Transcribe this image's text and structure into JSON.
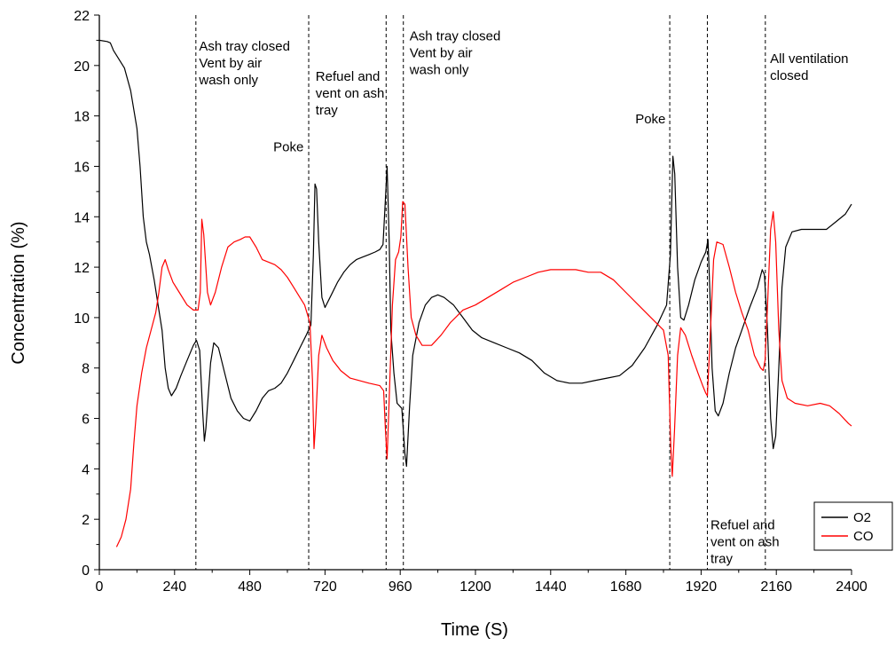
{
  "chart_data": {
    "type": "line",
    "title": "",
    "xlabel": "Time (S)",
    "ylabel": "Concentration (%)",
    "xlim": [
      0,
      2400
    ],
    "ylim": [
      0,
      22
    ],
    "xticks": [
      0,
      240,
      480,
      720,
      960,
      1200,
      1440,
      1680,
      1920,
      2160,
      2400
    ],
    "yticks": [
      0,
      2,
      4,
      6,
      8,
      10,
      12,
      14,
      16,
      18,
      20,
      22
    ],
    "grid": false,
    "legend_position": "bottom-right",
    "legend": [
      "O2",
      "CO"
    ],
    "vlines": [
      308,
      668,
      915,
      970,
      1820,
      1940,
      2125
    ],
    "annotations": [
      {
        "lines": [
          "Ash tray closed",
          "Vent by air",
          "wash only"
        ],
        "x": 318,
        "y": 20.6
      },
      {
        "lines": [
          "Poke"
        ],
        "x": 555,
        "y": 16.6
      },
      {
        "lines": [
          "Refuel and",
          "vent on ash",
          "tray"
        ],
        "x": 690,
        "y": 19.4
      },
      {
        "lines": [
          "Ash tray closed",
          "Vent by air",
          "wash only"
        ],
        "x": 990,
        "y": 21.0
      },
      {
        "lines": [
          "Poke"
        ],
        "x": 1710,
        "y": 17.7
      },
      {
        "lines": [
          "All ventilation",
          "closed"
        ],
        "x": 2140,
        "y": 20.1
      },
      {
        "lines": [
          "Refuel and",
          "vent on ash",
          "tray"
        ],
        "x": 1950,
        "y": 1.6
      }
    ],
    "series": [
      {
        "name": "O2",
        "color": "#000000",
        "points": [
          [
            0,
            21
          ],
          [
            25,
            20.95
          ],
          [
            35,
            20.9
          ],
          [
            45,
            20.6
          ],
          [
            60,
            20.3
          ],
          [
            80,
            19.9
          ],
          [
            100,
            19
          ],
          [
            120,
            17.5
          ],
          [
            130,
            16
          ],
          [
            140,
            14
          ],
          [
            150,
            13
          ],
          [
            160,
            12.5
          ],
          [
            175,
            11.5
          ],
          [
            190,
            10.3
          ],
          [
            200,
            9.5
          ],
          [
            210,
            8
          ],
          [
            220,
            7.2
          ],
          [
            230,
            6.9
          ],
          [
            245,
            7.2
          ],
          [
            260,
            7.7
          ],
          [
            280,
            8.3
          ],
          [
            300,
            8.9
          ],
          [
            310,
            9.1
          ],
          [
            320,
            8.7
          ],
          [
            330,
            6.2
          ],
          [
            335,
            5.1
          ],
          [
            340,
            5.6
          ],
          [
            355,
            8.2
          ],
          [
            365,
            9
          ],
          [
            380,
            8.8
          ],
          [
            400,
            7.8
          ],
          [
            420,
            6.8
          ],
          [
            440,
            6.3
          ],
          [
            460,
            6
          ],
          [
            480,
            5.9
          ],
          [
            500,
            6.3
          ],
          [
            520,
            6.8
          ],
          [
            540,
            7.1
          ],
          [
            560,
            7.2
          ],
          [
            580,
            7.4
          ],
          [
            600,
            7.8
          ],
          [
            620,
            8.3
          ],
          [
            640,
            8.8
          ],
          [
            660,
            9.3
          ],
          [
            675,
            9.7
          ],
          [
            683,
            12.5
          ],
          [
            688,
            15.3
          ],
          [
            693,
            15.1
          ],
          [
            700,
            13
          ],
          [
            710,
            10.8
          ],
          [
            720,
            10.4
          ],
          [
            740,
            10.9
          ],
          [
            760,
            11.4
          ],
          [
            780,
            11.8
          ],
          [
            800,
            12.1
          ],
          [
            820,
            12.3
          ],
          [
            840,
            12.4
          ],
          [
            860,
            12.5
          ],
          [
            880,
            12.6
          ],
          [
            895,
            12.7
          ],
          [
            905,
            12.9
          ],
          [
            912,
            14.5
          ],
          [
            918,
            16
          ],
          [
            925,
            13
          ],
          [
            930,
            9.5
          ],
          [
            940,
            7.8
          ],
          [
            950,
            6.6
          ],
          [
            965,
            6.4
          ],
          [
            975,
            4.6
          ],
          [
            980,
            4.1
          ],
          [
            990,
            6.5
          ],
          [
            1000,
            8.5
          ],
          [
            1020,
            9.8
          ],
          [
            1040,
            10.5
          ],
          [
            1060,
            10.8
          ],
          [
            1080,
            10.9
          ],
          [
            1100,
            10.8
          ],
          [
            1130,
            10.5
          ],
          [
            1160,
            10
          ],
          [
            1190,
            9.5
          ],
          [
            1220,
            9.2
          ],
          [
            1260,
            9
          ],
          [
            1300,
            8.8
          ],
          [
            1340,
            8.6
          ],
          [
            1380,
            8.3
          ],
          [
            1420,
            7.8
          ],
          [
            1460,
            7.5
          ],
          [
            1500,
            7.4
          ],
          [
            1540,
            7.4
          ],
          [
            1580,
            7.5
          ],
          [
            1620,
            7.6
          ],
          [
            1660,
            7.7
          ],
          [
            1700,
            8.1
          ],
          [
            1740,
            8.8
          ],
          [
            1780,
            9.7
          ],
          [
            1810,
            10.5
          ],
          [
            1822,
            12.5
          ],
          [
            1830,
            16.4
          ],
          [
            1836,
            15.7
          ],
          [
            1845,
            12
          ],
          [
            1855,
            10
          ],
          [
            1865,
            9.9
          ],
          [
            1880,
            10.5
          ],
          [
            1900,
            11.5
          ],
          [
            1920,
            12.2
          ],
          [
            1935,
            12.6
          ],
          [
            1942,
            13.1
          ],
          [
            1948,
            11
          ],
          [
            1955,
            8
          ],
          [
            1965,
            6.3
          ],
          [
            1975,
            6.1
          ],
          [
            1990,
            6.6
          ],
          [
            2010,
            7.8
          ],
          [
            2030,
            8.8
          ],
          [
            2050,
            9.5
          ],
          [
            2075,
            10.4
          ],
          [
            2100,
            11.2
          ],
          [
            2115,
            11.9
          ],
          [
            2122,
            11.7
          ],
          [
            2132,
            9.5
          ],
          [
            2142,
            6
          ],
          [
            2150,
            4.8
          ],
          [
            2158,
            5.3
          ],
          [
            2168,
            8
          ],
          [
            2178,
            11.2
          ],
          [
            2190,
            12.8
          ],
          [
            2210,
            13.4
          ],
          [
            2240,
            13.5
          ],
          [
            2280,
            13.5
          ],
          [
            2320,
            13.5
          ],
          [
            2350,
            13.8
          ],
          [
            2380,
            14.1
          ],
          [
            2400,
            14.5
          ]
        ]
      },
      {
        "name": "CO",
        "color": "#ff0000",
        "points": [
          [
            55,
            0.9
          ],
          [
            70,
            1.3
          ],
          [
            85,
            2
          ],
          [
            100,
            3.2
          ],
          [
            110,
            5
          ],
          [
            120,
            6.5
          ],
          [
            135,
            7.8
          ],
          [
            150,
            8.8
          ],
          [
            165,
            9.5
          ],
          [
            180,
            10.2
          ],
          [
            190,
            11
          ],
          [
            200,
            12
          ],
          [
            210,
            12.3
          ],
          [
            220,
            11.9
          ],
          [
            235,
            11.4
          ],
          [
            255,
            11
          ],
          [
            280,
            10.5
          ],
          [
            300,
            10.3
          ],
          [
            315,
            10.3
          ],
          [
            322,
            11
          ],
          [
            327,
            13.9
          ],
          [
            333,
            13.3
          ],
          [
            345,
            11
          ],
          [
            355,
            10.5
          ],
          [
            370,
            11
          ],
          [
            390,
            12
          ],
          [
            410,
            12.8
          ],
          [
            430,
            13
          ],
          [
            450,
            13.1
          ],
          [
            465,
            13.2
          ],
          [
            480,
            13.2
          ],
          [
            500,
            12.8
          ],
          [
            520,
            12.3
          ],
          [
            540,
            12.2
          ],
          [
            560,
            12.1
          ],
          [
            580,
            11.9
          ],
          [
            600,
            11.6
          ],
          [
            620,
            11.2
          ],
          [
            640,
            10.8
          ],
          [
            655,
            10.5
          ],
          [
            672,
            9.8
          ],
          [
            680,
            7.5
          ],
          [
            685,
            4.8
          ],
          [
            690,
            5.8
          ],
          [
            700,
            8.5
          ],
          [
            710,
            9.3
          ],
          [
            725,
            8.8
          ],
          [
            745,
            8.3
          ],
          [
            770,
            7.9
          ],
          [
            800,
            7.6
          ],
          [
            830,
            7.5
          ],
          [
            860,
            7.4
          ],
          [
            895,
            7.3
          ],
          [
            907,
            7.1
          ],
          [
            913,
            5.5
          ],
          [
            918,
            4.4
          ],
          [
            924,
            6.5
          ],
          [
            935,
            10.5
          ],
          [
            945,
            12.3
          ],
          [
            955,
            12.6
          ],
          [
            962,
            13.2
          ],
          [
            968,
            14.6
          ],
          [
            975,
            14.5
          ],
          [
            985,
            12
          ],
          [
            995,
            10
          ],
          [
            1010,
            9.3
          ],
          [
            1030,
            8.9
          ],
          [
            1060,
            8.9
          ],
          [
            1090,
            9.3
          ],
          [
            1120,
            9.8
          ],
          [
            1160,
            10.3
          ],
          [
            1200,
            10.5
          ],
          [
            1240,
            10.8
          ],
          [
            1280,
            11.1
          ],
          [
            1320,
            11.4
          ],
          [
            1360,
            11.6
          ],
          [
            1400,
            11.8
          ],
          [
            1440,
            11.9
          ],
          [
            1480,
            11.9
          ],
          [
            1520,
            11.9
          ],
          [
            1560,
            11.8
          ],
          [
            1600,
            11.8
          ],
          [
            1640,
            11.5
          ],
          [
            1680,
            11
          ],
          [
            1720,
            10.5
          ],
          [
            1760,
            10
          ],
          [
            1800,
            9.5
          ],
          [
            1815,
            8.5
          ],
          [
            1823,
            5
          ],
          [
            1828,
            3.7
          ],
          [
            1835,
            5.5
          ],
          [
            1845,
            8.5
          ],
          [
            1855,
            9.6
          ],
          [
            1870,
            9.3
          ],
          [
            1890,
            8.5
          ],
          [
            1910,
            7.8
          ],
          [
            1925,
            7.3
          ],
          [
            1935,
            7
          ],
          [
            1940,
            6.9
          ],
          [
            1950,
            9.5
          ],
          [
            1960,
            12.3
          ],
          [
            1970,
            13
          ],
          [
            1990,
            12.9
          ],
          [
            2010,
            12
          ],
          [
            2030,
            11
          ],
          [
            2050,
            10.2
          ],
          [
            2070,
            9.5
          ],
          [
            2090,
            8.5
          ],
          [
            2110,
            8
          ],
          [
            2118,
            7.9
          ],
          [
            2124,
            8.3
          ],
          [
            2132,
            10.5
          ],
          [
            2142,
            13.5
          ],
          [
            2150,
            14.2
          ],
          [
            2158,
            13
          ],
          [
            2168,
            9.5
          ],
          [
            2178,
            7.5
          ],
          [
            2195,
            6.8
          ],
          [
            2220,
            6.6
          ],
          [
            2260,
            6.5
          ],
          [
            2300,
            6.6
          ],
          [
            2330,
            6.5
          ],
          [
            2360,
            6.2
          ],
          [
            2390,
            5.8
          ],
          [
            2400,
            5.7
          ]
        ]
      }
    ]
  }
}
